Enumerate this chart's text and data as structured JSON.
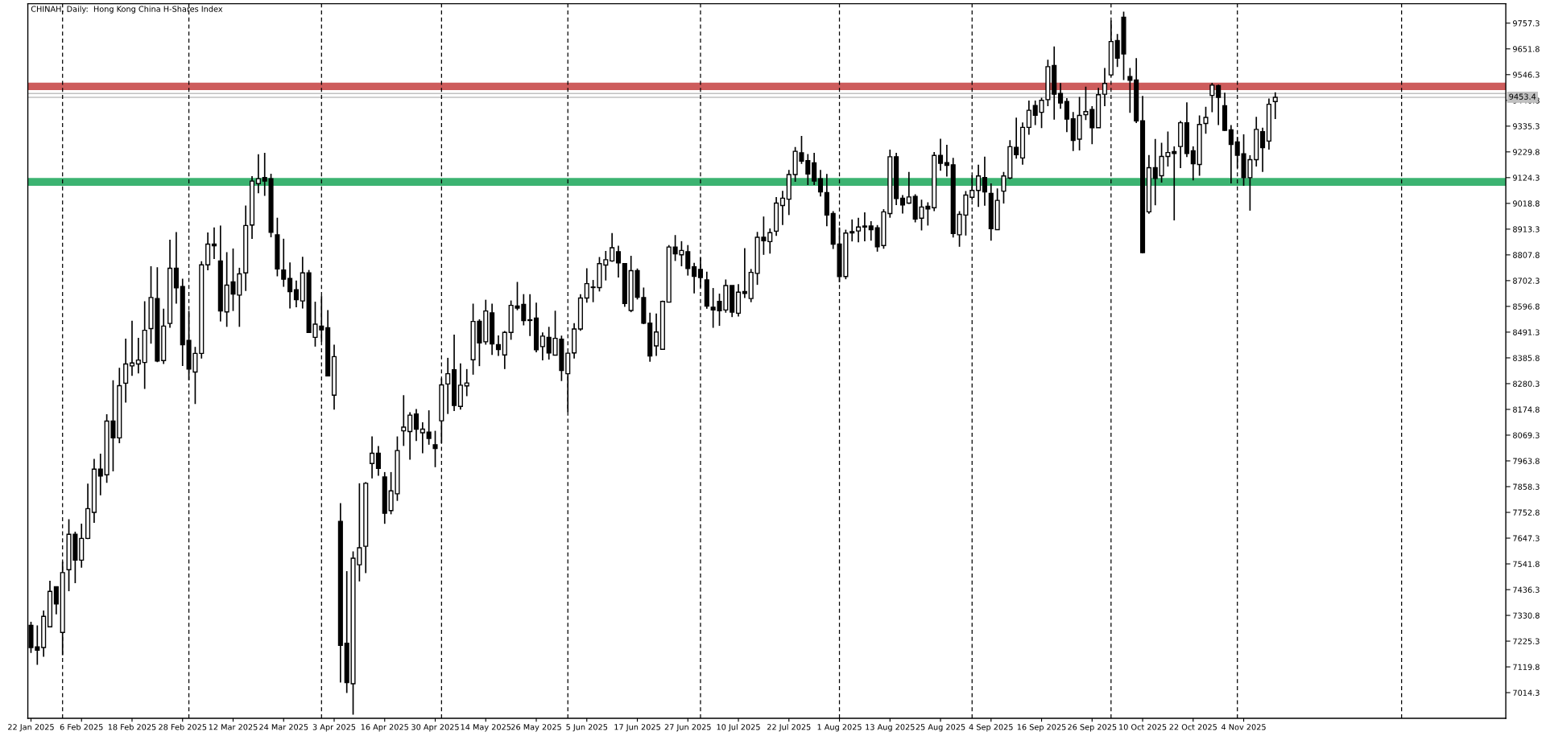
{
  "chart_data": {
    "type": "candlestick",
    "title": "CHINAH, Daily:  Hong Kong China H-Shares Index",
    "color": "#000000",
    "categories": [
      "22 Jan 2025",
      null,
      null,
      null,
      null,
      null,
      null,
      null,
      "6 Feb 2025",
      null,
      null,
      null,
      null,
      null,
      null,
      null,
      "18 Feb 2025",
      null,
      null,
      null,
      null,
      null,
      null,
      null,
      "28 Feb 2025",
      null,
      null,
      null,
      null,
      null,
      null,
      null,
      "12 Mar 2025",
      null,
      null,
      null,
      null,
      null,
      null,
      null,
      "24 Mar 2025",
      null,
      null,
      null,
      null,
      null,
      null,
      null,
      "3 Apr 2025",
      null,
      null,
      null,
      null,
      null,
      null,
      null,
      "16 Apr 2025",
      null,
      null,
      null,
      null,
      null,
      null,
      null,
      "30 Apr 2025",
      null,
      null,
      null,
      null,
      null,
      null,
      null,
      "14 May 2025",
      null,
      null,
      null,
      null,
      null,
      null,
      null,
      "26 May 2025",
      null,
      null,
      null,
      null,
      null,
      null,
      null,
      "5 Jun 2025",
      null,
      null,
      null,
      null,
      null,
      null,
      null,
      "17 Jun 2025",
      null,
      null,
      null,
      null,
      null,
      null,
      null,
      "27 Jun 2025",
      null,
      null,
      null,
      null,
      null,
      null,
      null,
      "10 Jul 2025",
      null,
      null,
      null,
      null,
      null,
      null,
      null,
      "22 Jul 2025",
      null,
      null,
      null,
      null,
      null,
      null,
      null,
      "1 Aug 2025",
      null,
      null,
      null,
      null,
      null,
      null,
      null,
      "13 Aug 2025",
      null,
      null,
      null,
      null,
      null,
      null,
      null,
      "25 Aug 2025",
      null,
      null,
      null,
      null,
      null,
      null,
      null,
      "4 Sep 2025",
      null,
      null,
      null,
      null,
      null,
      null,
      null,
      "16 Sep 2025",
      null,
      null,
      null,
      null,
      null,
      null,
      null,
      "26 Sep 2025",
      null,
      null,
      null,
      null,
      null,
      null,
      null,
      "10 Oct 2025",
      null,
      null,
      null,
      null,
      null,
      null,
      null,
      "22 Oct 2025",
      null,
      null,
      null,
      null,
      null,
      null,
      null,
      "4 Nov 2025",
      null,
      null,
      null,
      null,
      null,
      null,
      null,
      null,
      null,
      null,
      null,
      null,
      null,
      null,
      null,
      null,
      null,
      null,
      null,
      null,
      null,
      null,
      null,
      null,
      null,
      null,
      null,
      null,
      null,
      null,
      null,
      null,
      null,
      null,
      null,
      null,
      null,
      null,
      null,
      null,
      null
    ],
    "ohlc": [
      [
        7290,
        7305,
        7177,
        7199
      ],
      [
        7202,
        7290,
        7128,
        7188
      ],
      [
        7199,
        7351,
        7161,
        7327
      ],
      [
        7284,
        7473,
        7284,
        7429
      ],
      [
        7448,
        7448,
        7335,
        7378
      ],
      [
        7261,
        7551,
        7168,
        7506
      ],
      [
        7518,
        7725,
        7430,
        7663
      ],
      [
        7663,
        7674,
        7463,
        7557
      ],
      [
        7557,
        7707,
        7526,
        7646
      ],
      [
        7646,
        7871,
        7643,
        7768
      ],
      [
        7753,
        7972,
        7710,
        7930
      ],
      [
        7930,
        7993,
        7823,
        7902
      ],
      [
        7907,
        8155,
        7874,
        8127
      ],
      [
        8127,
        8294,
        7921,
        8058
      ],
      [
        8058,
        8345,
        8036,
        8272
      ],
      [
        8282,
        8465,
        8203,
        8361
      ],
      [
        8353,
        8538,
        8312,
        8365
      ],
      [
        8361,
        8468,
        8322,
        8377
      ],
      [
        8367,
        8618,
        8259,
        8499
      ],
      [
        8506,
        8761,
        8444,
        8633
      ],
      [
        8629,
        8757,
        8368,
        8373
      ],
      [
        8375,
        8587,
        8361,
        8516
      ],
      [
        8527,
        8870,
        8509,
        8753
      ],
      [
        8753,
        8901,
        8608,
        8673
      ],
      [
        8678,
        8710,
        8353,
        8440
      ],
      [
        8457,
        8578,
        8295,
        8340
      ],
      [
        8328,
        8431,
        8197,
        8404
      ],
      [
        8404,
        8782,
        8383,
        8767
      ],
      [
        8767,
        8900,
        8745,
        8852
      ],
      [
        8852,
        8920,
        8791,
        8845
      ],
      [
        8783,
        8928,
        8535,
        8578
      ],
      [
        8574,
        8819,
        8513,
        8684
      ],
      [
        8697,
        8834,
        8578,
        8647
      ],
      [
        8643,
        8755,
        8513,
        8730
      ],
      [
        8734,
        9010,
        8660,
        8928
      ],
      [
        8930,
        9130,
        8873,
        9110
      ],
      [
        9100,
        9220,
        9060,
        9120
      ],
      [
        9125,
        9226,
        9050,
        9110
      ],
      [
        9120,
        9140,
        8880,
        8900
      ],
      [
        8890,
        8960,
        8720,
        8750
      ],
      [
        8746,
        8874,
        8677,
        8708
      ],
      [
        8711,
        8777,
        8588,
        8657
      ],
      [
        8665,
        8703,
        8593,
        8624
      ],
      [
        8619,
        8800,
        8588,
        8734
      ],
      [
        8734,
        8746,
        8490,
        8490
      ],
      [
        8470,
        8616,
        8432,
        8524
      ],
      [
        8516,
        8639,
        8452,
        8501
      ],
      [
        8509,
        8582,
        8312,
        8312
      ],
      [
        8233,
        8440,
        8174,
        8391
      ],
      [
        7716,
        7791,
        7056,
        7208
      ],
      [
        7217,
        7512,
        7013,
        7056
      ],
      [
        7051,
        7593,
        6924,
        7565
      ],
      [
        7538,
        7872,
        7470,
        7608
      ],
      [
        7614,
        7877,
        7504,
        7872
      ],
      [
        7953,
        8064,
        7892,
        7995
      ],
      [
        7995,
        8025,
        7903,
        7933
      ],
      [
        7898,
        7918,
        7706,
        7749
      ],
      [
        7760,
        7918,
        7745,
        7841
      ],
      [
        7829,
        8064,
        7800,
        8006
      ],
      [
        8087,
        8233,
        8025,
        8102
      ],
      [
        8084,
        8163,
        7969,
        8151
      ],
      [
        8156,
        8176,
        8045,
        8094
      ],
      [
        8079,
        8122,
        7995,
        8094
      ],
      [
        8082,
        8171,
        8030,
        8056
      ],
      [
        8030,
        8087,
        7938,
        8015
      ],
      [
        8128,
        8302,
        8036,
        8275
      ],
      [
        8279,
        8386,
        8156,
        8321
      ],
      [
        8337,
        8481,
        8168,
        8191
      ],
      [
        8187,
        8363,
        8174,
        8274
      ],
      [
        8271,
        8340,
        8229,
        8283
      ],
      [
        8378,
        8608,
        8317,
        8535
      ],
      [
        8536,
        8544,
        8352,
        8447
      ],
      [
        8452,
        8624,
        8440,
        8578
      ],
      [
        8570,
        8608,
        8398,
        8443
      ],
      [
        8440,
        8478,
        8394,
        8420
      ],
      [
        8398,
        8496,
        8340,
        8490
      ],
      [
        8490,
        8621,
        8460,
        8601
      ],
      [
        8598,
        8697,
        8581,
        8590
      ],
      [
        8605,
        8647,
        8519,
        8539
      ],
      [
        8542,
        8647,
        8475,
        8539
      ],
      [
        8549,
        8612,
        8409,
        8419
      ],
      [
        8432,
        8490,
        8376,
        8475
      ],
      [
        8470,
        8513,
        8379,
        8406
      ],
      [
        8397,
        8579,
        8397,
        8466
      ],
      [
        8462,
        8477,
        8291,
        8334
      ],
      [
        8321,
        8408,
        8164,
        8405
      ],
      [
        8406,
        8528,
        8383,
        8504
      ],
      [
        8504,
        8647,
        8497,
        8631
      ],
      [
        8631,
        8753,
        8612,
        8690
      ],
      [
        8676,
        8705,
        8614,
        8674
      ],
      [
        8674,
        8799,
        8658,
        8772
      ],
      [
        8766,
        8824,
        8703,
        8788
      ],
      [
        8783,
        8897,
        8779,
        8837
      ],
      [
        8821,
        8845,
        8715,
        8775
      ],
      [
        8772,
        8772,
        8595,
        8609
      ],
      [
        8580,
        8804,
        8573,
        8743
      ],
      [
        8743,
        8752,
        8625,
        8634
      ],
      [
        8633,
        8674,
        8524,
        8528
      ],
      [
        8528,
        8571,
        8370,
        8394
      ],
      [
        8435,
        8568,
        8394,
        8492
      ],
      [
        8421,
        8620,
        8421,
        8617
      ],
      [
        8614,
        8848,
        8614,
        8840
      ],
      [
        8840,
        8889,
        8783,
        8812
      ],
      [
        8808,
        8864,
        8761,
        8826
      ],
      [
        8821,
        8848,
        8723,
        8752
      ],
      [
        8759,
        8775,
        8650,
        8720
      ],
      [
        8748,
        8797,
        8674,
        8715
      ],
      [
        8705,
        8739,
        8587,
        8598
      ],
      [
        8593,
        8672,
        8509,
        8582
      ],
      [
        8617,
        8649,
        8517,
        8579
      ],
      [
        8582,
        8707,
        8571,
        8682
      ],
      [
        8682,
        8682,
        8553,
        8573
      ],
      [
        8569,
        8688,
        8555,
        8655
      ],
      [
        8658,
        8835,
        8631,
        8650
      ],
      [
        8629,
        8750,
        8614,
        8736
      ],
      [
        8732,
        8902,
        8685,
        8880
      ],
      [
        8880,
        8965,
        8808,
        8866
      ],
      [
        8862,
        8916,
        8813,
        8899
      ],
      [
        8905,
        9045,
        8886,
        9020
      ],
      [
        9010,
        9070,
        8930,
        9040
      ],
      [
        9036,
        9156,
        8971,
        9137
      ],
      [
        9137,
        9250,
        9107,
        9232
      ],
      [
        9226,
        9295,
        9181,
        9192
      ],
      [
        9194,
        9221,
        9094,
        9139
      ],
      [
        9185,
        9226,
        9094,
        9110
      ],
      [
        9120,
        9156,
        9047,
        9066
      ],
      [
        9063,
        9139,
        8925,
        8971
      ],
      [
        8977,
        8987,
        8832,
        8852
      ],
      [
        8852,
        8920,
        8696,
        8719
      ],
      [
        8719,
        8911,
        8708,
        8897
      ],
      [
        8903,
        8953,
        8863,
        8898
      ],
      [
        8906,
        8960,
        8859,
        8922
      ],
      [
        8926,
        8982,
        8863,
        8922
      ],
      [
        8926,
        8946,
        8866,
        8911
      ],
      [
        8919,
        8930,
        8821,
        8841
      ],
      [
        8846,
        8995,
        8833,
        8984
      ],
      [
        8977,
        9239,
        8960,
        9210
      ],
      [
        9210,
        9226,
        9012,
        9039
      ],
      [
        9040,
        9053,
        8977,
        9012
      ],
      [
        9020,
        9148,
        9017,
        9045
      ],
      [
        9047,
        9056,
        8941,
        8955
      ],
      [
        8958,
        9034,
        8908,
        9004
      ],
      [
        9007,
        9023,
        8928,
        8996
      ],
      [
        9001,
        9229,
        8987,
        9215
      ],
      [
        9215,
        9284,
        9153,
        9183
      ],
      [
        9186,
        9259,
        9129,
        9175
      ],
      [
        9177,
        9205,
        8879,
        8895
      ],
      [
        8890,
        8987,
        8841,
        8974
      ],
      [
        8971,
        9069,
        8887,
        9053
      ],
      [
        9044,
        9134,
        9033,
        9072
      ],
      [
        9072,
        9177,
        9004,
        9131
      ],
      [
        9125,
        9210,
        9009,
        9066
      ],
      [
        9060,
        9101,
        8866,
        8915
      ],
      [
        8911,
        9080,
        8911,
        9031
      ],
      [
        9069,
        9148,
        9018,
        9131
      ],
      [
        9123,
        9278,
        9118,
        9251
      ],
      [
        9248,
        9370,
        9202,
        9218
      ],
      [
        9205,
        9350,
        9177,
        9330
      ],
      [
        9330,
        9440,
        9300,
        9400
      ],
      [
        9420,
        9440,
        9340,
        9380
      ],
      [
        9392,
        9452,
        9327,
        9441
      ],
      [
        9444,
        9607,
        9417,
        9579
      ],
      [
        9584,
        9662,
        9362,
        9466
      ],
      [
        9469,
        9512,
        9406,
        9430
      ],
      [
        9436,
        9450,
        9311,
        9364
      ],
      [
        9365,
        9393,
        9233,
        9277
      ],
      [
        9282,
        9455,
        9236,
        9379
      ],
      [
        9382,
        9497,
        9360,
        9395
      ],
      [
        9403,
        9417,
        9261,
        9329
      ],
      [
        9329,
        9492,
        9329,
        9464
      ],
      [
        9466,
        9574,
        9417,
        9510
      ],
      [
        9545,
        9768,
        9540,
        9682
      ],
      [
        9686,
        9713,
        9578,
        9614
      ],
      [
        9781,
        9804,
        9524,
        9631
      ],
      [
        9538,
        9574,
        9390,
        9523
      ],
      [
        9524,
        9614,
        9348,
        9357
      ],
      [
        9357,
        9459,
        8814,
        8817
      ],
      [
        8984,
        9217,
        8976,
        9165
      ],
      [
        9165,
        9283,
        9011,
        9121
      ],
      [
        9132,
        9267,
        9104,
        9211
      ],
      [
        9211,
        9313,
        9170,
        9227
      ],
      [
        9231,
        9252,
        8949,
        9223
      ],
      [
        9252,
        9357,
        9163,
        9349
      ],
      [
        9349,
        9433,
        9209,
        9223
      ],
      [
        9234,
        9252,
        9113,
        9181
      ],
      [
        9178,
        9379,
        9132,
        9342
      ],
      [
        9346,
        9415,
        9304,
        9371
      ],
      [
        9461,
        9513,
        9392,
        9503
      ],
      [
        9501,
        9505,
        9340,
        9453
      ],
      [
        9419,
        9472,
        9316,
        9318
      ],
      [
        9320,
        9340,
        9101,
        9260
      ],
      [
        9271,
        9291,
        9163,
        9216
      ],
      [
        9222,
        9302,
        9091,
        9124
      ],
      [
        9124,
        9216,
        8989,
        9198
      ],
      [
        9198,
        9373,
        9170,
        9322
      ],
      [
        9313,
        9329,
        9148,
        9247
      ],
      [
        9274,
        9448,
        9239,
        9425
      ],
      [
        9436,
        9474,
        9364,
        9453.4
      ],
      null,
      null,
      null,
      null,
      null,
      null,
      null,
      null,
      null,
      null,
      null,
      null,
      null,
      null,
      null,
      null,
      null,
      null,
      null,
      null,
      null,
      null,
      null,
      null,
      null,
      null,
      null,
      null,
      null,
      null,
      null,
      null,
      null,
      null,
      null,
      null
    ],
    "ylim": [
      6909,
      9837
    ],
    "yticks": [
      9757.3,
      9651.8,
      9546.3,
      9440.8,
      9335.3,
      9229.8,
      9124.3,
      9018.8,
      8913.3,
      8807.8,
      8702.3,
      8596.8,
      8491.3,
      8385.8,
      8280.3,
      8174.8,
      8069.3,
      7963.8,
      7858.3,
      7752.8,
      7647.3,
      7541.8,
      7436.3,
      7330.8,
      7225.3,
      7119.8,
      7014.3
    ],
    "ref_lines": [
      {
        "axis": "y",
        "value": 9469,
        "color": "#c0c0c0",
        "line_style": "solid"
      },
      {
        "axis": "y",
        "value": 9453.4,
        "label": "9453.4",
        "color": "#c0c0c0",
        "line_style": "solid"
      }
    ],
    "bands": [
      {
        "axis": "y",
        "from": 9482.7,
        "to": 9513.4,
        "color": "#cd5c5c"
      },
      {
        "axis": "y",
        "from": 9091.2,
        "to": 9123,
        "color": "#3cb371"
      }
    ]
  }
}
